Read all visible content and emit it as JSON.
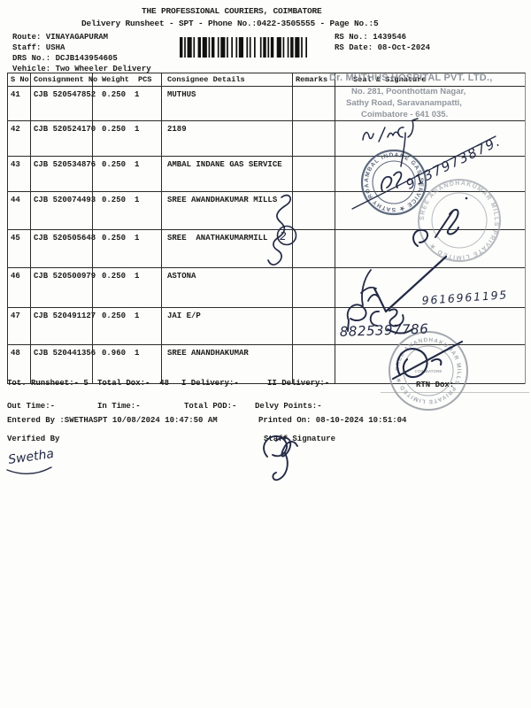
{
  "header": {
    "title": "THE PROFESSIONAL COURIERS, COIMBATORE",
    "subtitle": "Delivery Runsheet - SPT - Phone No.:0422-3505555 - Page No.:5",
    "route": "Route: VINAYAGAPURAM",
    "staff": "Staff: USHA",
    "drs_no": "DRS No.: DCJB143954605",
    "vehicle": "Vehicle: Two Wheeler Delivery",
    "rs_no": "RS No.: 1439546",
    "rs_date": "RS Date: 08-Oct-2024",
    "barcode_icon": "barcode"
  },
  "table": {
    "headers": {
      "sno": "S No",
      "consignment": "Consignment No",
      "weight": "Weight",
      "pcs": "PCS",
      "consignee": "Consignee Details",
      "remarks": "Remarks",
      "seal": "Seal & Signature"
    },
    "rows": [
      {
        "sno": "41",
        "consignment": "CJB 520547852",
        "weight": "0.250",
        "pcs": "1",
        "consignee": "MUTHUS",
        "remarks": ""
      },
      {
        "sno": "42",
        "consignment": "CJB 520524170",
        "weight": "0.250",
        "pcs": "1",
        "consignee": "2189",
        "remarks": ""
      },
      {
        "sno": "43",
        "consignment": "CJB 520534876",
        "weight": "0.250",
        "pcs": "1",
        "consignee": "AMBAL INDANE GAS SERVICE",
        "remarks": ""
      },
      {
        "sno": "44",
        "consignment": "CJB 520074493",
        "weight": "0.250",
        "pcs": "1",
        "consignee": "SREE AWANDHAKUMAR MILLS",
        "remarks": ""
      },
      {
        "sno": "45",
        "consignment": "CJB 520505648",
        "weight": "0.250",
        "pcs": "1",
        "consignee": "SREE  ANATHAKUMARMILL",
        "remarks": ""
      },
      {
        "sno": "46",
        "consignment": "CJB 520500979",
        "weight": "0.250",
        "pcs": "1",
        "consignee": "ASTONA",
        "remarks": ""
      },
      {
        "sno": "47",
        "consignment": "CJB 520491127",
        "weight": "0.250",
        "pcs": "1",
        "consignee": "JAI E/P",
        "remarks": ""
      },
      {
        "sno": "48",
        "consignment": "CJB 520441356",
        "weight": "0.960",
        "pcs": "1",
        "consignee": "SREE ANANDHAKUMAR",
        "remarks": ""
      }
    ]
  },
  "totals": {
    "runsheet": "Tot. Runsheet:- 5",
    "total_dox": "Total Dox:-  48",
    "i_delivery": "I Delivery:-",
    "ii_delivery": "II Delivery:-",
    "rtn_dox": "RTN Dox:",
    "out_time": "Out Time:-",
    "in_time": "In Time:-",
    "total_pod": "Total POD:-",
    "delvy_points": "Delvy Points:-"
  },
  "footer": {
    "entered_by": "Entered By :SWETHASPT 10/08/2024 10:47:50 AM",
    "printed_on": "Printed On: 08-10-2024 10:51:04",
    "verified_by": "Verified By",
    "staff_signature": "Staff Signature"
  },
  "stamps": {
    "address_stamp": {
      "line1": "Dr. MUTHUS HOSPITAL PVT. LTD.,",
      "line2": "No. 281, Poonthottam Nagar,",
      "line3": "Sathy Road, Saravanampatti,",
      "line4": "Coimbatore - 641 035."
    },
    "round_stamp_ambal": "AMBAL INDANE GAS SERVICE ★ SATHY ROAD ★",
    "round_stamp_mills_1": "SREE ANANDHAKUMAR MILLS PRIVATE LIMITED ★",
    "round_stamp_mills_2": "SREE ANANDHAKUMAR MILLS PRIVATE LIMITED ★",
    "round_stamp_center": "COIMBATORE"
  },
  "handwriting": {
    "phone_1": "9137973879.",
    "phone_2": "9616961195",
    "phone_3": "8825397786",
    "circled_count": "2",
    "verified_signature": "Swetha"
  },
  "colors": {
    "print_ink": "#1d1d1d",
    "pen_ink": "#232a45",
    "stamp_gray": "#8b919a",
    "stamp_blue": "#49566e"
  }
}
